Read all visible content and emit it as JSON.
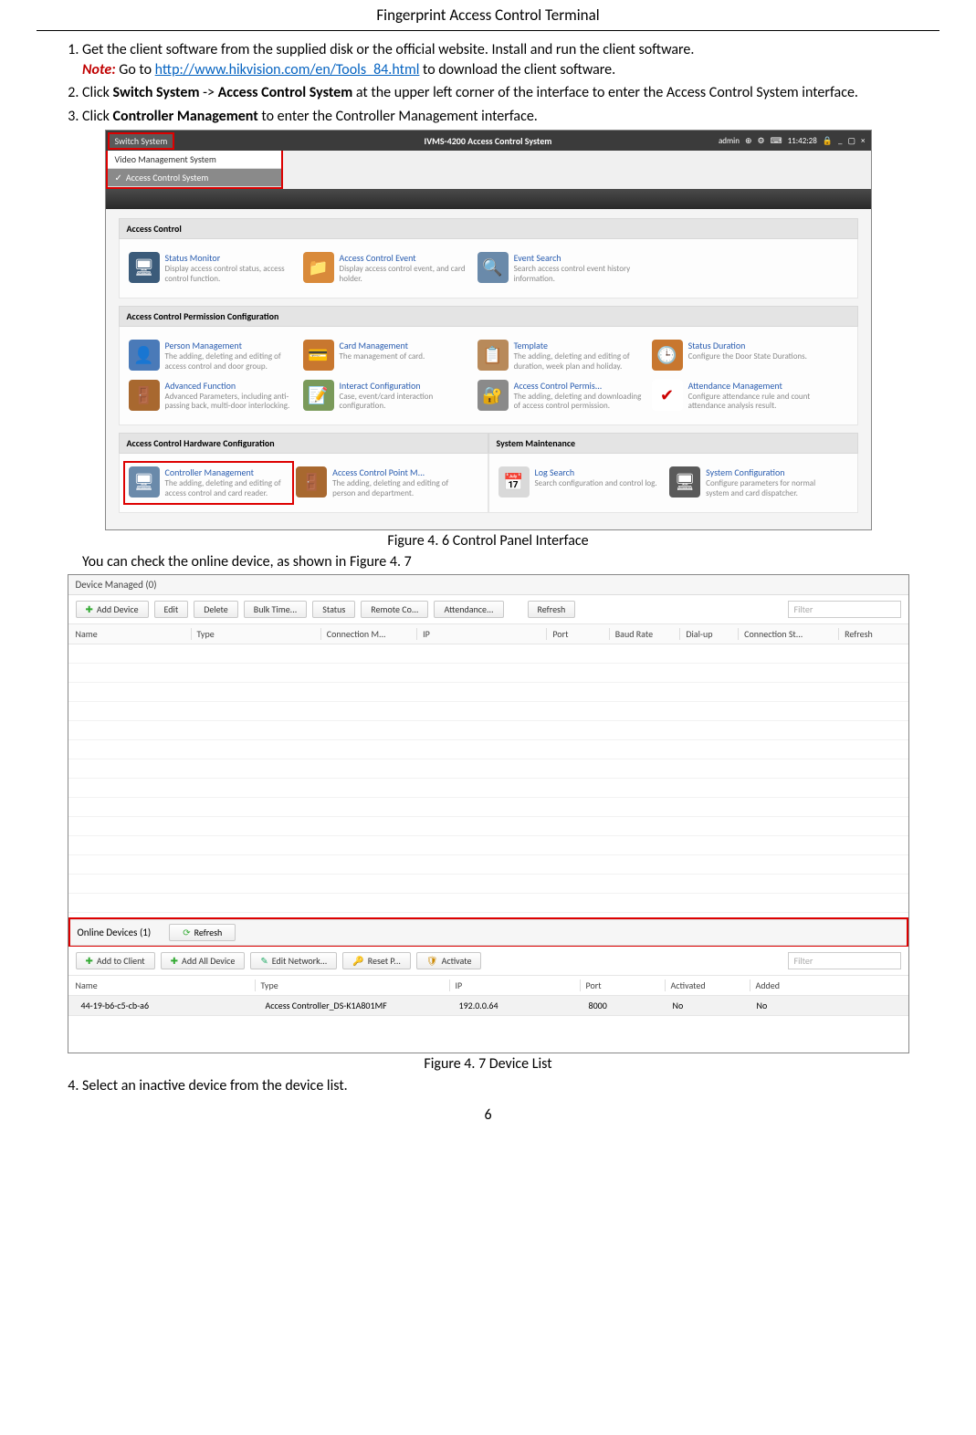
{
  "doc": {
    "title": "Fingerprint Access Control Terminal",
    "page_number": "6",
    "steps": {
      "s1a": "Get the client software from the supplied disk or the official website. Install and run the client software.",
      "note_label": "Note:",
      "s1b_pre": " Go to ",
      "s1b_link": "http://www.hikvision.com/en/Tools_84.html",
      "s1b_post": " to download the client software.",
      "s2_a": "Click ",
      "s2_b": "Switch System",
      "s2_c": " -> ",
      "s2_d": "Access Control System",
      "s2_e": " at the upper left corner of the interface to enter the Access Control System interface.",
      "s3_a": "Click ",
      "s3_b": "Controller Management",
      "s3_c": " to enter the Controller Management interface.",
      "s4": "Select an inactive device from the device list."
    },
    "fig1_caption": "Figure 4. 6 Control Panel Interface",
    "mid_text": "You can check the online device, as shown in Figure 4. 7",
    "fig2_caption": "Figure 4. 7 Device List"
  },
  "app": {
    "switch_label": "Switch System",
    "title": "IVMS-4200  Access Control System",
    "user": "admin",
    "time": "11:42:28",
    "menu": {
      "item1": "Video Management System",
      "item2": "Access Control System"
    },
    "sec1_h": "Access Control",
    "tiles1": [
      {
        "icon": "🖥",
        "bg": "#3b5b7a",
        "t": "Status Monitor",
        "d": "Display access control status, access control function."
      },
      {
        "icon": "📁",
        "bg": "#d98a3a",
        "t": "Access Control Event",
        "d": "Display access control event, and card holder."
      },
      {
        "icon": "🔍",
        "bg": "#6a8aaa",
        "t": "Event Search",
        "d": "Search access control event history information."
      }
    ],
    "sec2_h": "Access Control Permission Configuration",
    "tiles2": [
      {
        "icon": "👤",
        "bg": "#4a7ab8",
        "t": "Person Management",
        "d": "The adding, deleting and editing of access control and door group."
      },
      {
        "icon": "💳",
        "bg": "#c8772f",
        "t": "Card Management",
        "d": "The management of card."
      },
      {
        "icon": "📋",
        "bg": "#b88a5a",
        "t": "Template",
        "d": "The adding, deleting and editing of duration, week plan and holiday."
      },
      {
        "icon": "🕒",
        "bg": "#c8772f",
        "t": "Status Duration",
        "d": "Configure the Door State Durations."
      },
      {
        "icon": "🚪",
        "bg": "#a8682f",
        "t": "Advanced Function",
        "d": "Advanced Parameters, including anti-passing back, multi-door interlocking."
      },
      {
        "icon": "📝",
        "bg": "#7a9a5a",
        "t": "Interact Configuration",
        "d": "Case, event/card interaction configuration."
      },
      {
        "icon": "🔐",
        "bg": "#8a8a8a",
        "t": "Access  Control Permis...",
        "d": "The adding, deleting and downloading of access control permission."
      },
      {
        "icon": "✔",
        "bg": "#ffffff",
        "fg": "#c00",
        "t": "Attendance Management",
        "d": "Configure attendance rule and count attendance analysis result."
      }
    ],
    "sec3a_h": "Access Control Hardware Configuration",
    "sec3b_h": "System Maintenance",
    "tiles3a": [
      {
        "icon": "🖥",
        "bg": "#6a8aaa",
        "t": "Controller Management",
        "d": "The adding, deleting and editing of access control and card reader.",
        "red": true
      },
      {
        "icon": "🚪",
        "bg": "#a8682f",
        "t": "Access  Control Point  M...",
        "d": "The adding, deleting and editing of person and department."
      }
    ],
    "tiles3b": [
      {
        "icon": "📅",
        "bg": "#d9d9d9",
        "t": "Log Search",
        "d": "Search configuration and control log."
      },
      {
        "icon": "🖥",
        "bg": "#5a5a5a",
        "t": "System Configuration",
        "d": "Configure parameters for normal system and card dispatcher."
      }
    ]
  },
  "dev": {
    "head": "Device Managed (0)",
    "toolbar": {
      "add": "Add Device",
      "edit": "Edit",
      "del": "Delete",
      "bulk": "Bulk Time...",
      "status": "Status",
      "remote": "Remote Co...",
      "att": "Attendance...",
      "refresh": "Refresh",
      "filter": "Filter"
    },
    "cols": [
      "Name",
      "Type",
      "Connection M...",
      "IP",
      "Port",
      "Baud Rate",
      "Dial-up",
      "Connection St...",
      "Refresh"
    ],
    "colw": [
      "130px",
      "140px",
      "100px",
      "140px",
      "60px",
      "70px",
      "55px",
      "105px",
      "60px"
    ],
    "online_h": "Online Devices (1)",
    "refresh_btn": "Refresh",
    "toolbar2": {
      "add": "Add to Client",
      "addall": "Add All Device",
      "edit": "Edit Network...",
      "reset": "Reset P...",
      "activate": "Activate",
      "filter": "Filter"
    },
    "cols2": [
      "Name",
      "Type",
      "IP",
      "Port",
      "Activated",
      "Added"
    ],
    "col2w": [
      "190px",
      "200px",
      "130px",
      "80px",
      "80px",
      "80px"
    ],
    "row": {
      "name": "44-19-b6-c5-cb-a6",
      "type": "Access Controller_DS-K1A801MF",
      "ip": "192.0.0.64",
      "port": "8000",
      "act": "No",
      "added": "No"
    }
  }
}
